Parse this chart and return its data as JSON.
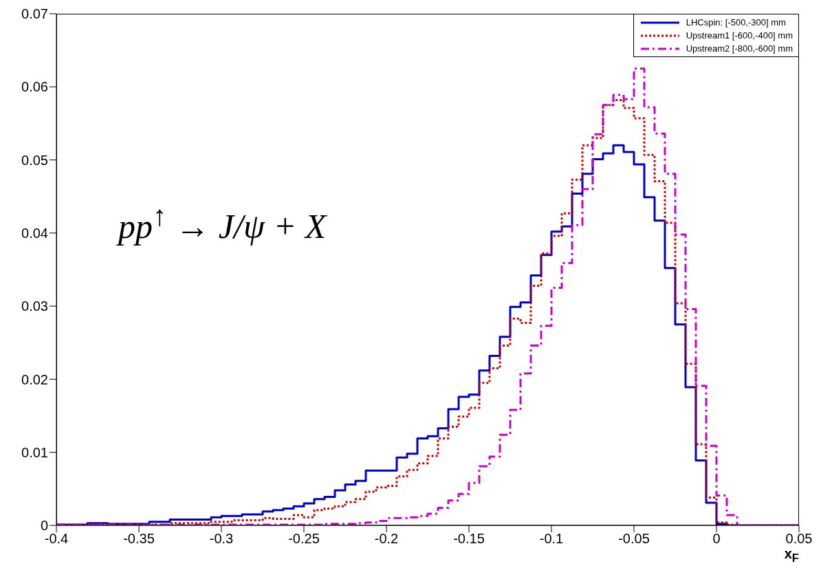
{
  "chart_data": {
    "type": "histogram",
    "xlabel": "x$_{F}$",
    "annotations": [
      "pp$^{↑}$ → J/ψ + X"
    ],
    "bins": [
      -0.4,
      -0.39375,
      -0.3875,
      -0.38125,
      -0.375,
      -0.36875,
      -0.3625,
      -0.35625,
      -0.35,
      -0.34375,
      -0.3375,
      -0.33125,
      -0.325,
      -0.31875,
      -0.3125,
      -0.30625,
      -0.3,
      -0.29375,
      -0.2875,
      -0.28125,
      -0.275,
      -0.26875,
      -0.2625,
      -0.25625,
      -0.25,
      -0.24375,
      -0.2375,
      -0.23125,
      -0.225,
      -0.21875,
      -0.2125,
      -0.20625,
      -0.2,
      -0.19375,
      -0.1875,
      -0.18125,
      -0.175,
      -0.16875,
      -0.1625,
      -0.15625,
      -0.15,
      -0.14375,
      -0.1375,
      -0.13125,
      -0.125,
      -0.11875,
      -0.1125,
      -0.10625,
      -0.1,
      -0.09375,
      -0.0875,
      -0.08125,
      -0.075,
      -0.06875,
      -0.0625,
      -0.05625,
      -0.05,
      -0.04375,
      -0.0375,
      -0.03125,
      -0.025,
      -0.01875,
      -0.0125,
      -0.00625,
      0,
      0.00625,
      0.0125,
      0.01875,
      0.025,
      0.03125,
      0.0375,
      0.04375,
      0.05
    ],
    "series": [
      {
        "name": "LHCspin: [-500,-300] mm",
        "color": "#0000cc",
        "line_style": "solid",
        "values": [
          0.0001,
          0.0001,
          0.0001,
          0.0003,
          0.0003,
          0.0002,
          0.0002,
          0.0002,
          0.0002,
          0.0005,
          0.0005,
          0.0008,
          0.0008,
          0.0008,
          0.0008,
          0.0011,
          0.0013,
          0.0013,
          0.0015,
          0.0015,
          0.0019,
          0.0021,
          0.0023,
          0.0026,
          0.003,
          0.0036,
          0.0039,
          0.0048,
          0.0056,
          0.0061,
          0.0075,
          0.0075,
          0.0075,
          0.0093,
          0.0098,
          0.0119,
          0.0122,
          0.0133,
          0.0159,
          0.0176,
          0.0179,
          0.0212,
          0.0232,
          0.0258,
          0.0299,
          0.0305,
          0.0342,
          0.037,
          0.0402,
          0.0409,
          0.0454,
          0.0481,
          0.0501,
          0.0509,
          0.052,
          0.0511,
          0.0494,
          0.0449,
          0.0417,
          0.0352,
          0.0275,
          0.0189,
          0.0089,
          0.0031,
          0.0002,
          0,
          0,
          0,
          0,
          0,
          0,
          0
        ]
      },
      {
        "name": "Upstream1 [-600,-400] mm",
        "color": "#cc0000",
        "line_style": "dotted",
        "values": [
          0.0001,
          0.0001,
          0.0001,
          0.0001,
          0.0001,
          0.0001,
          0.0001,
          0.0001,
          0.0001,
          0.0001,
          0.0001,
          0.0003,
          0.0003,
          0.0003,
          0.0003,
          0.0005,
          0.0005,
          0.0007,
          0.0007,
          0.0007,
          0.001,
          0.0009,
          0.0009,
          0.0014,
          0.0011,
          0.0021,
          0.0023,
          0.0026,
          0.0032,
          0.0036,
          0.0046,
          0.0052,
          0.0054,
          0.0067,
          0.0076,
          0.0085,
          0.0095,
          0.0119,
          0.0135,
          0.0149,
          0.0161,
          0.0195,
          0.0215,
          0.0246,
          0.0283,
          0.0277,
          0.0328,
          0.0372,
          0.0396,
          0.0427,
          0.0473,
          0.052,
          0.053,
          0.0575,
          0.0582,
          0.0571,
          0.0557,
          0.0507,
          0.0471,
          0.0414,
          0.0304,
          0.0221,
          0.0111,
          0.0038,
          0.0004,
          0.0001,
          0,
          0,
          0,
          0,
          0,
          0
        ]
      },
      {
        "name": "Upstream2 [-800,-600] mm",
        "color": "#cc00cc",
        "line_style": "dashdot",
        "values": [
          0.0001,
          0.0001,
          0.0001,
          0.0001,
          0.0001,
          0.0001,
          0.0001,
          0.0001,
          0.0001,
          0.0001,
          0.0001,
          0.0001,
          0.0001,
          0.0001,
          0.0001,
          0.0001,
          0.0001,
          0.0001,
          0.0001,
          0.0001,
          0.0001,
          0.0001,
          0.0001,
          0.0001,
          0.0001,
          0.0001,
          0.0002,
          0.0002,
          0.0002,
          0.0003,
          0.0004,
          0.0006,
          0.001,
          0.001,
          0.0011,
          0.0013,
          0.0016,
          0.0024,
          0.0034,
          0.0043,
          0.0058,
          0.0081,
          0.0094,
          0.0124,
          0.0158,
          0.0208,
          0.0246,
          0.0273,
          0.0325,
          0.0359,
          0.0411,
          0.046,
          0.0535,
          0.0575,
          0.0589,
          0.0583,
          0.0625,
          0.0572,
          0.0536,
          0.0481,
          0.0398,
          0.0296,
          0.0191,
          0.0109,
          0.0041,
          0.0014,
          0,
          0,
          0,
          0,
          0,
          0
        ]
      }
    ],
    "xlim": [
      -0.4,
      0.05
    ],
    "xticks": [
      -0.4,
      -0.35,
      -0.3,
      -0.25,
      -0.2,
      -0.15,
      -0.1,
      -0.05,
      0,
      0.05
    ],
    "ylim": [
      0,
      0.07
    ],
    "yticks": [
      0,
      0.01,
      0.02,
      0.03,
      0.04,
      0.05,
      0.06,
      0.07
    ],
    "legend": "top right"
  }
}
